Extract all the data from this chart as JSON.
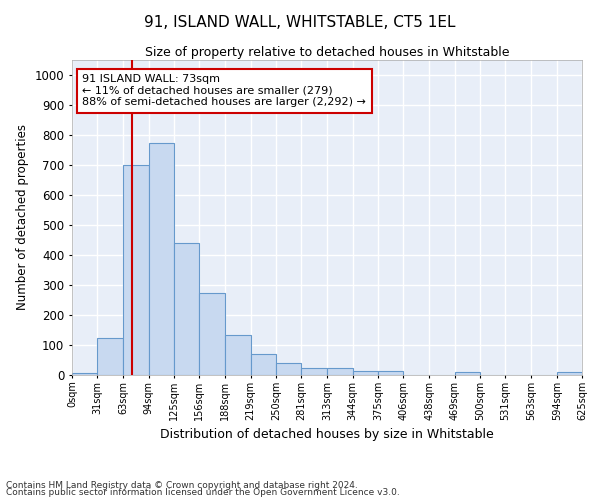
{
  "title": "91, ISLAND WALL, WHITSTABLE, CT5 1EL",
  "subtitle": "Size of property relative to detached houses in Whitstable",
  "xlabel": "Distribution of detached houses by size in Whitstable",
  "ylabel": "Number of detached properties",
  "footer_line1": "Contains HM Land Registry data © Crown copyright and database right 2024.",
  "footer_line2": "Contains public sector information licensed under the Open Government Licence v3.0.",
  "annotation_line1": "91 ISLAND WALL: 73sqm",
  "annotation_line2": "← 11% of detached houses are smaller (279)",
  "annotation_line3": "88% of semi-detached houses are larger (2,292) →",
  "property_size": 73,
  "bar_edges": [
    0,
    31,
    63,
    94,
    125,
    156,
    188,
    219,
    250,
    281,
    313,
    344,
    375,
    406,
    438,
    469,
    500,
    531,
    563,
    594,
    625
  ],
  "bar_heights": [
    8,
    125,
    700,
    775,
    440,
    273,
    132,
    70,
    40,
    23,
    23,
    12,
    12,
    0,
    0,
    10,
    0,
    0,
    0,
    10
  ],
  "bar_color": "#c8d9f0",
  "bar_edge_color": "#6699cc",
  "vline_color": "#cc0000",
  "annotation_box_color": "#cc0000",
  "ylim": [
    0,
    1050
  ],
  "background_color": "#e8eef8",
  "plot_bg_color": "#e8eef8",
  "fig_bg_color": "#ffffff",
  "grid_color": "#ffffff",
  "tick_labels": [
    "0sqm",
    "31sqm",
    "63sqm",
    "94sqm",
    "125sqm",
    "156sqm",
    "188sqm",
    "219sqm",
    "250sqm",
    "281sqm",
    "313sqm",
    "344sqm",
    "375sqm",
    "406sqm",
    "438sqm",
    "469sqm",
    "500sqm",
    "531sqm",
    "563sqm",
    "594sqm",
    "625sqm"
  ],
  "yticks": [
    0,
    100,
    200,
    300,
    400,
    500,
    600,
    700,
    800,
    900,
    1000
  ]
}
